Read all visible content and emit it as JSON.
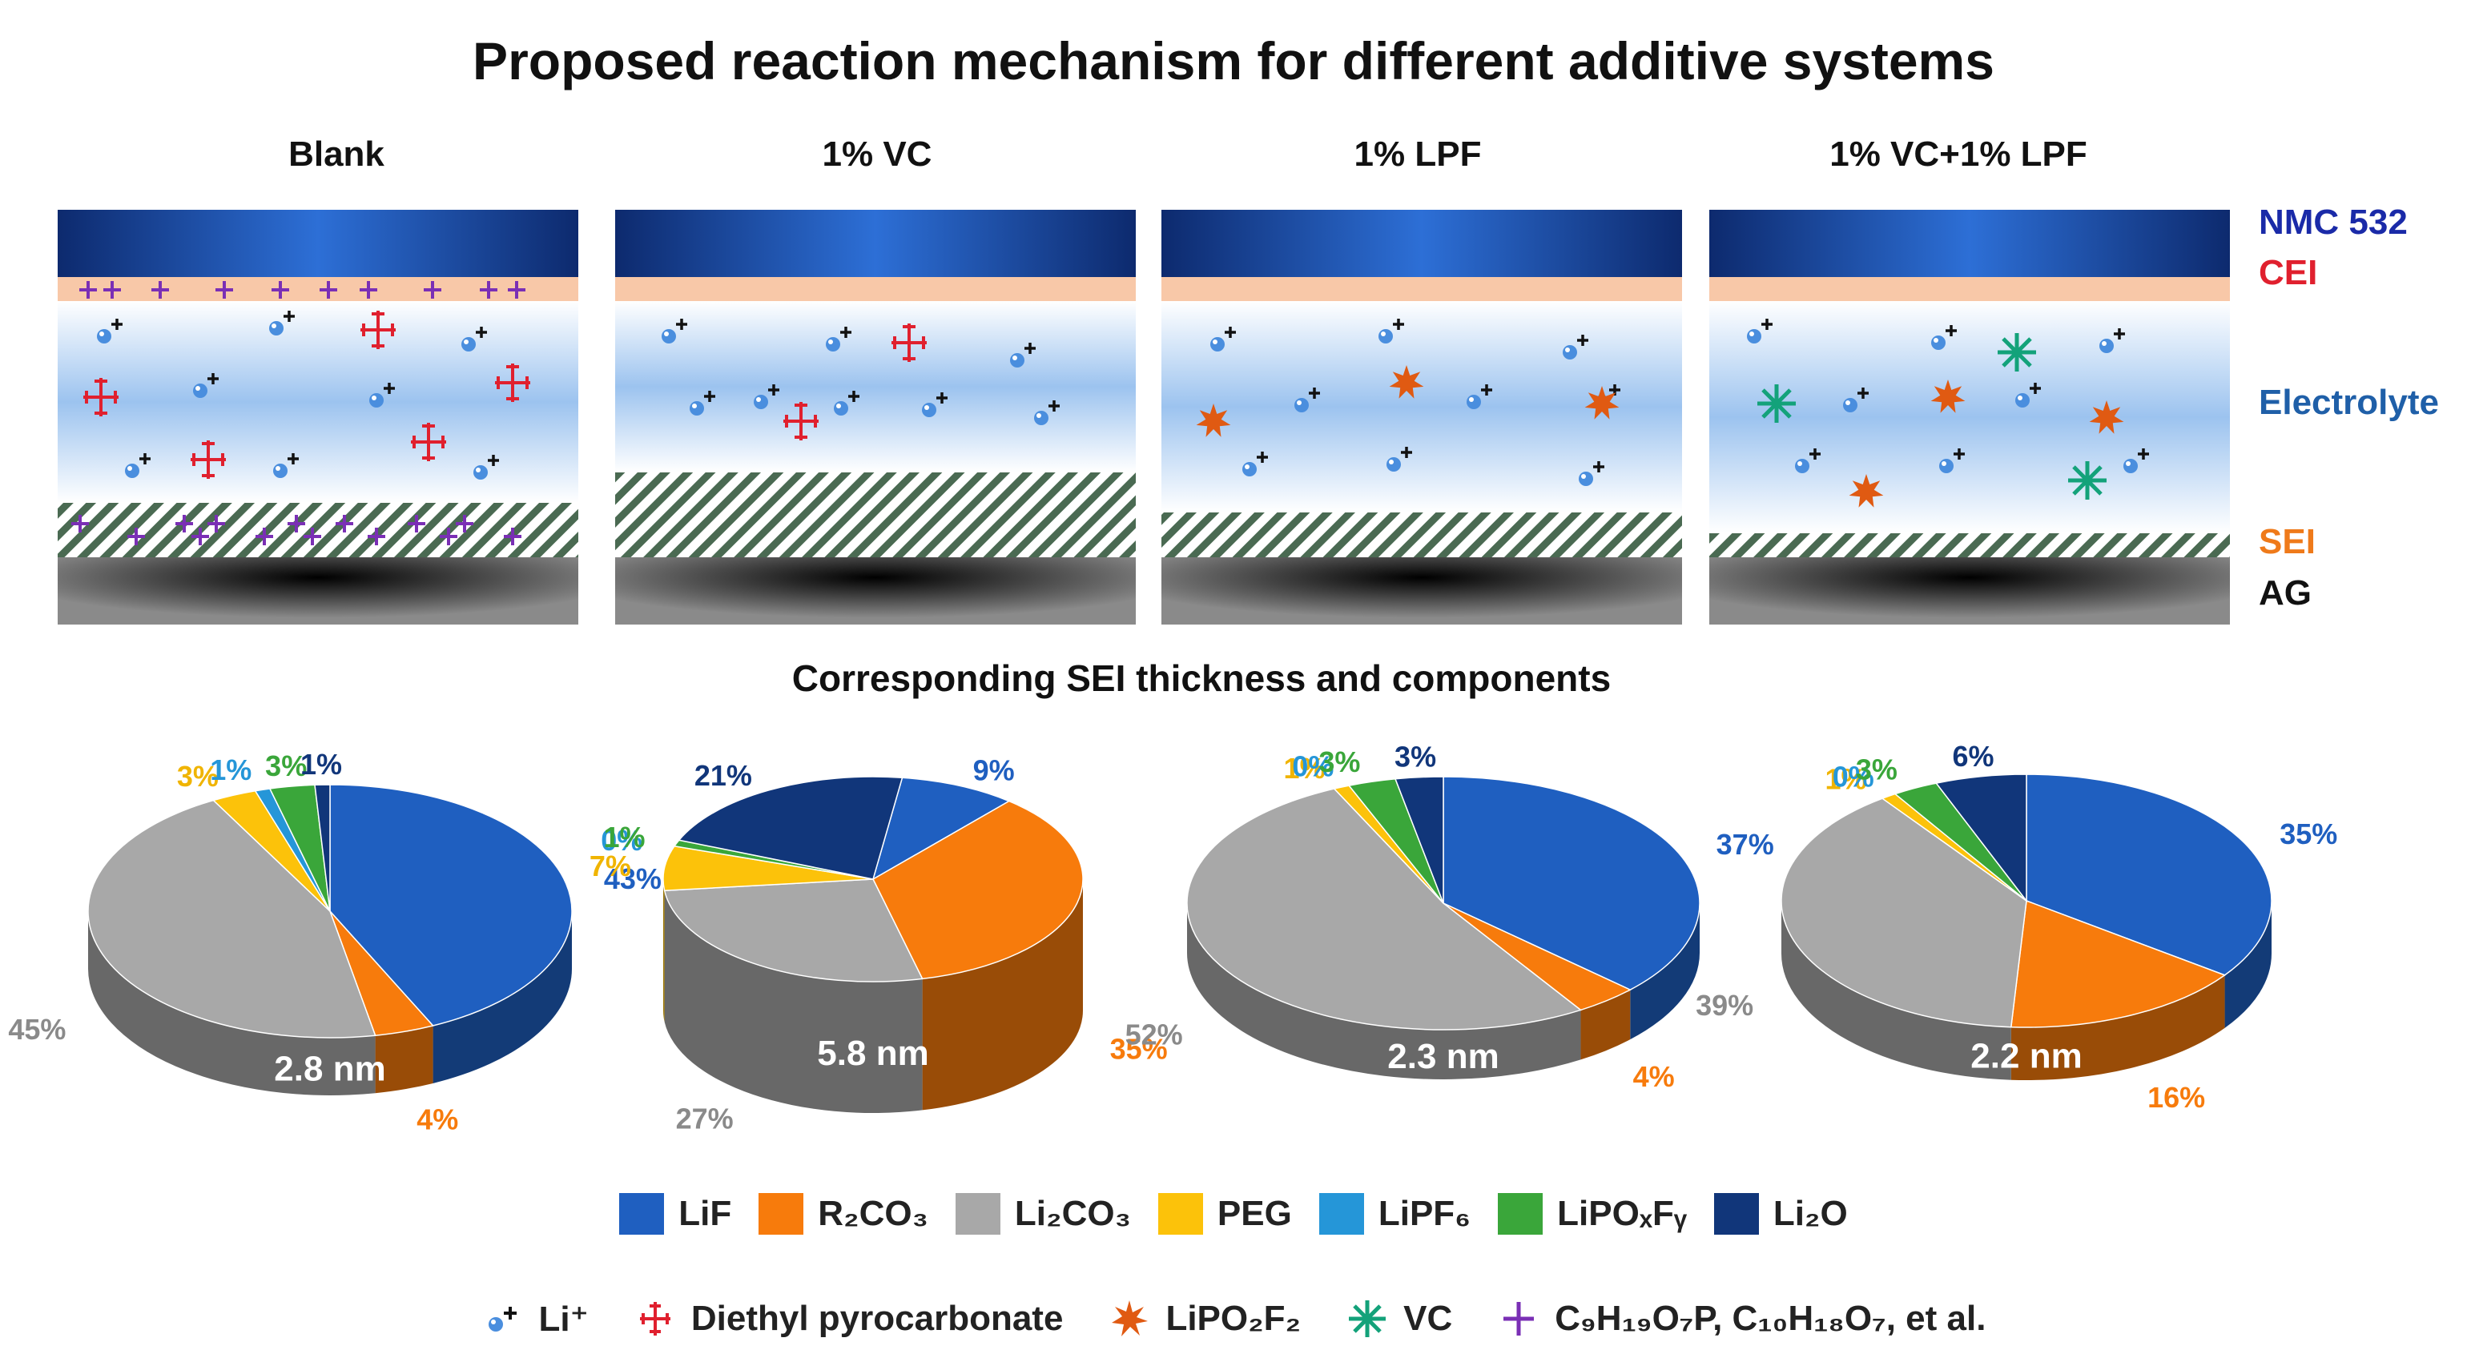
{
  "title": "Proposed reaction mechanism for different additive systems",
  "panels": [
    {
      "label": "Blank"
    },
    {
      "label": "1% VC"
    },
    {
      "label": "1% LPF"
    },
    {
      "label": "1% VC+1% LPF"
    }
  ],
  "layers": {
    "nmc": {
      "label": "NMC 532",
      "color": "#1a2aa8"
    },
    "cei": {
      "label": "CEI",
      "color": "#e0202e"
    },
    "electrolyte": {
      "label": "Electrolyte",
      "color": "#1f5fa8"
    },
    "sei": {
      "label": "SEI",
      "color": "#ef7a1a"
    },
    "ag": {
      "label": "AG",
      "color": "#111111"
    }
  },
  "subtitle": "Corresponding SEI thickness and components",
  "chart_data": [
    {
      "type": "pie",
      "title": "Blank",
      "center_label": "2.8 nm",
      "sei_thickness_nm": 2.8,
      "categories": [
        "LiF",
        "R2CO3",
        "Li2CO3",
        "PEG",
        "LiPF6",
        "LiPOxFy",
        "Li2O"
      ],
      "values": [
        43,
        4,
        45,
        3,
        1,
        3,
        1
      ],
      "labels": [
        "43%",
        "4%",
        "45%",
        "3%",
        "1%",
        "3%",
        "1%"
      ]
    },
    {
      "type": "pie",
      "title": "1% VC",
      "center_label": "5.8 nm",
      "sei_thickness_nm": 5.8,
      "categories": [
        "LiF",
        "R2CO3",
        "Li2CO3",
        "PEG",
        "LiPF6",
        "LiPOxFy",
        "Li2O"
      ],
      "values": [
        9,
        35,
        27,
        7,
        0,
        1,
        21
      ],
      "labels": [
        "9%",
        "35%",
        "27%",
        "7%",
        "0%",
        "1%",
        "21%"
      ]
    },
    {
      "type": "pie",
      "title": "1% LPF",
      "center_label": "2.3 nm",
      "sei_thickness_nm": 2.3,
      "categories": [
        "LiF",
        "R2CO3",
        "Li2CO3",
        "PEG",
        "LiPF6",
        "LiPOxFy",
        "Li2O"
      ],
      "values": [
        37,
        4,
        52,
        1,
        0,
        3,
        3
      ],
      "labels": [
        "37%",
        "4%",
        "52%",
        "1%",
        "0%",
        "3%",
        "3%"
      ]
    },
    {
      "type": "pie",
      "title": "1% VC+1% LPF",
      "center_label": "2.2 nm",
      "sei_thickness_nm": 2.2,
      "categories": [
        "LiF",
        "R2CO3",
        "Li2CO3",
        "PEG",
        "LiPF6",
        "LiPOxFy",
        "Li2O"
      ],
      "values": [
        35,
        16,
        39,
        1,
        0,
        3,
        6
      ],
      "labels": [
        "35%",
        "16%",
        "39%",
        "1%",
        "0%",
        "3%",
        "6%"
      ]
    }
  ],
  "component_colors": [
    "#1f5fc0",
    "#f77b0c",
    "#a8a8a8",
    "#fcc20a",
    "#2596d8",
    "#3aa63a",
    "#11367a"
  ],
  "label_colors": [
    "#1f5fc0",
    "#f77b0c",
    "#8a8a8a",
    "#f0b400",
    "#2596d8",
    "#3aa63a",
    "#11367a"
  ],
  "legend_components": [
    {
      "label": "LiF",
      "color": "#1f5fc0"
    },
    {
      "label": "R₂CO₃",
      "color": "#f77b0c"
    },
    {
      "label": "Li₂CO₃",
      "color": "#a8a8a8"
    },
    {
      "label": "PEG",
      "color": "#fcc20a"
    },
    {
      "label": "LiPF₆",
      "color": "#2596d8"
    },
    {
      "label": "LiPOₓFᵧ",
      "color": "#3aa63a"
    },
    {
      "label": "Li₂O",
      "color": "#11367a"
    }
  ],
  "legend_species": [
    {
      "label": "Li⁺",
      "icon": "li-ion-icon"
    },
    {
      "label": "Diethyl pyrocarbonate",
      "icon": "red-cross-icon",
      "color": "#e0202e"
    },
    {
      "label": "LiPO₂F₂",
      "icon": "orange-star-icon",
      "color": "#e05a12"
    },
    {
      "label": "VC",
      "icon": "green-star-icon",
      "color": "#13a27a"
    },
    {
      "label": "C₉H₁₉O₇P, C₁₀H₁₈O₇, et al.",
      "icon": "purple-cross-icon",
      "color": "#7a2fb5"
    }
  ]
}
